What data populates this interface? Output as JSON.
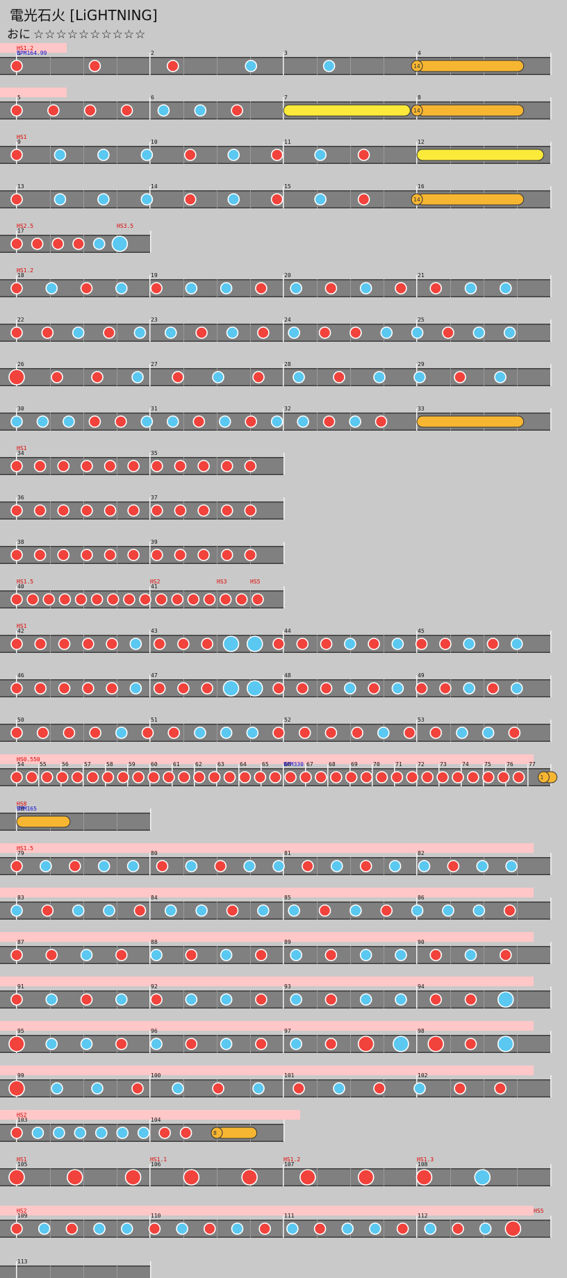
{
  "header": {
    "title": "電光石火 [LiGHTNING]",
    "difficulty": "おに",
    "stars": "☆☆☆☆☆☆☆☆☆☆"
  },
  "colors": {
    "background": "#c9c9c9",
    "lane": "#808080",
    "lane_edge": "#3a3a3a",
    "don": "#f2423c",
    "ka": "#5ac8f0",
    "roll": "#f7b632",
    "balloon": "#fbea3a",
    "gogo_band": "#ffc7c7",
    "scroll_marker": "#e00000",
    "bpm_marker": "#1010d0"
  },
  "rows": [
    {
      "measures": [
        "1",
        "2",
        "3",
        "4"
      ],
      "scroll": "HS1.2",
      "bpm": "BPM164.99",
      "gogo": [
        0,
        0.5
      ],
      "notes": "dddkk",
      "rolls": [
        [
          3.0,
          3.8,
          "roll",
          "14"
        ]
      ]
    },
    {
      "measures": [
        "5",
        "6",
        "7",
        "8"
      ],
      "gogo": [
        0,
        0.5
      ],
      "notes": "dddpkkd",
      "rolls": [
        [
          2.0,
          2.95,
          "balloon"
        ],
        [
          3.0,
          3.8,
          "roll",
          "14"
        ]
      ]
    },
    {
      "measures": [
        "9",
        "10",
        "11",
        "12"
      ],
      "scroll": "HS1",
      "notes": "dkkkdkdkd",
      "rolls": [
        [
          3.0,
          3.95,
          "balloon"
        ]
      ]
    },
    {
      "measures": [
        "13",
        "14",
        "15",
        "16"
      ],
      "notes": "dkkkdkdkd",
      "rolls": [
        [
          3.0,
          3.8,
          "roll",
          "14"
        ]
      ]
    },
    {
      "measures": [
        "17"
      ],
      "scroll": "HS2.5",
      "scroll2": "HS3.5",
      "notes": "ddddkK"
    },
    {
      "measures": [
        "18",
        "19",
        "20",
        "21"
      ],
      "scroll": "HS1.2",
      "notes": "dkdkdkkdkdkddkk"
    },
    {
      "measures": [
        "22",
        "23",
        "24",
        "25"
      ],
      "notes": "ddkdkkdkdkddkkdkk"
    },
    {
      "measures": [
        "26",
        "27",
        "28",
        "29"
      ],
      "notes": "Dddkdkdkdkkdk"
    },
    {
      "measures": [
        "30",
        "31",
        "32",
        "33"
      ],
      "notes": "kkkddkkdkdkkdkd",
      "rolls": [
        [
          3.0,
          3.8,
          "roll"
        ]
      ]
    },
    {
      "measures": [
        "34",
        "35"
      ],
      "scroll": "HS1",
      "notes": "ddddddddddd"
    },
    {
      "measures": [
        "36",
        "37"
      ],
      "notes": "ddddddddddd"
    },
    {
      "measures": [
        "38",
        "39"
      ],
      "notes": "ddddddddddd"
    },
    {
      "measures": [
        "40",
        "41"
      ],
      "scroll": "HS1.5",
      "scroll2": "HS2",
      "scroll3": "HS3",
      "scroll4": "HS5",
      "notes": "dddddddddddddddd"
    },
    {
      "measures": [
        "42",
        "43",
        "44",
        "45"
      ],
      "scroll": "HS1",
      "notes": "dddddkdddKKdddkdkddkdk"
    },
    {
      "measures": [
        "46",
        "47",
        "48",
        "49"
      ],
      "notes": "dddddkdddKKdddkdkddkdk"
    },
    {
      "measures": [
        "50",
        "51",
        "52",
        "53"
      ],
      "notes": "ddddkddkkkddddkddkkd"
    },
    {
      "measures": [
        "54",
        "55",
        "56",
        "57",
        "58",
        "59",
        "60",
        "61",
        "62",
        "63",
        "64",
        "65",
        "66",
        "67",
        "68",
        "69",
        "70",
        "71",
        "72",
        "73",
        "74",
        "75",
        "76",
        "77"
      ],
      "scroll": "HS0.550",
      "bpm2": "BPM330",
      "gogo": [
        0,
        4
      ],
      "notes": "dddddddddddddddddddddddddddddddddd",
      "rolls": [
        [
          3.95,
          4.05,
          "roll",
          "1"
        ]
      ]
    },
    {
      "measures": [
        "78"
      ],
      "scroll": "HS8",
      "bpm": "BPM165",
      "rolls": [
        [
          0.0,
          0.4,
          "roll"
        ]
      ]
    },
    {
      "measures": [
        "79",
        "80",
        "81",
        "82"
      ],
      "scroll": "HS1.5",
      "gogo": [
        0,
        4
      ],
      "notes": "dkdkkdkdkkdkdkkdkk"
    },
    {
      "measures": [
        "83",
        "84",
        "85",
        "86"
      ],
      "gogo": [
        0,
        4
      ],
      "notes": "kdkkdkkdkkdkdkkkd"
    },
    {
      "measures": [
        "87",
        "88",
        "89",
        "90"
      ],
      "gogo": [
        0,
        4
      ],
      "notes": "ddkdkdkdkdkkdkd"
    },
    {
      "measures": [
        "91",
        "92",
        "93",
        "94"
      ],
      "gogo": [
        0,
        4
      ],
      "notes": "dkdkdkkdkdkkddK"
    },
    {
      "measures": [
        "95",
        "96",
        "97",
        "98"
      ],
      "gogo": [
        0,
        4
      ],
      "notes": "DkkdkdkdkdDKDdK"
    },
    {
      "measures": [
        "99",
        "100",
        "101",
        "102"
      ],
      "gogo": [
        0,
        4
      ],
      "notes": "Dkkdkdkdkdkdd"
    },
    {
      "measures": [
        "103",
        "104"
      ],
      "scroll": "HS2",
      "gogo": [
        0,
        2.25
      ],
      "notes": "dkkkkkkdd",
      "rolls": [
        [
          1.5,
          1.8,
          "roll",
          "8"
        ]
      ]
    },
    {
      "measures": [
        "105",
        "106",
        "107",
        "108"
      ],
      "scroll": "HS1",
      "scroll2": "HS1.1",
      "scroll3": "HS1.2",
      "scroll4": "HS1.3",
      "notes": "DDDDDDDDK"
    },
    {
      "measures": [
        "109",
        "110",
        "111",
        "112"
      ],
      "scroll": "HS2",
      "scroll5": "HS5",
      "gogo": [
        0,
        4
      ],
      "notes": "dkdkkdkdkdkdkkdkdkD"
    },
    {
      "measures": [
        "113"
      ]
    }
  ]
}
